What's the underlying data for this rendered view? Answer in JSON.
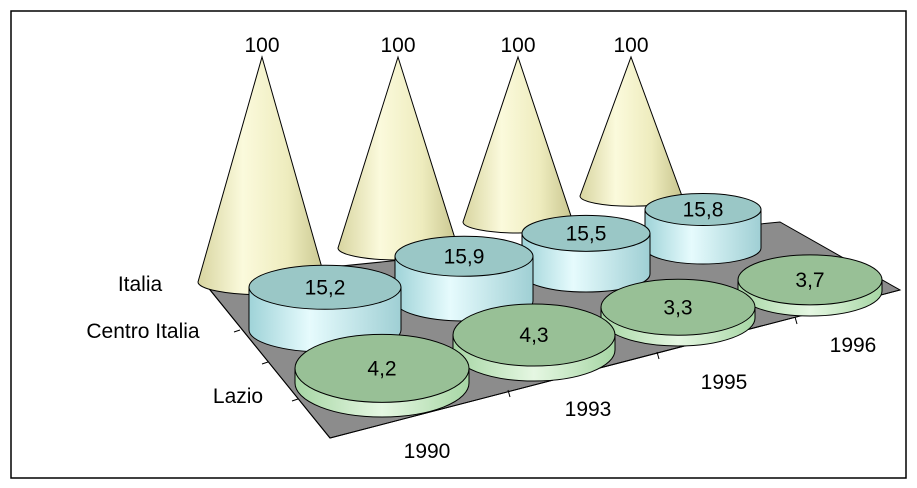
{
  "chart_data": {
    "type": "3d-column-cone",
    "categories": [
      "1990",
      "1993",
      "1995",
      "1996"
    ],
    "series": [
      {
        "name": "Italia",
        "values": [
          100,
          100,
          100,
          100
        ],
        "shape": "cone",
        "color": "#f2f0c4"
      },
      {
        "name": "Centro Italia",
        "values": [
          15.2,
          15.9,
          15.5,
          15.8
        ],
        "shape": "cylinder",
        "color": "#c4ecf0"
      },
      {
        "name": "Lazio",
        "values": [
          4.2,
          4.3,
          3.3,
          3.7
        ],
        "shape": "cylinder",
        "color": "#8fb88d"
      }
    ],
    "data_labels": {
      "Italia": [
        "100",
        "100",
        "100",
        "100"
      ],
      "Centro Italia": [
        "15,2",
        "15,9",
        "15,5",
        "15,8"
      ],
      "Lazio": [
        "4,2",
        "4,3",
        "3,3",
        "3,7"
      ]
    },
    "grid": false,
    "legend": "none",
    "colors": {
      "floor": "#8c8c8c",
      "frame": "#000000"
    }
  }
}
